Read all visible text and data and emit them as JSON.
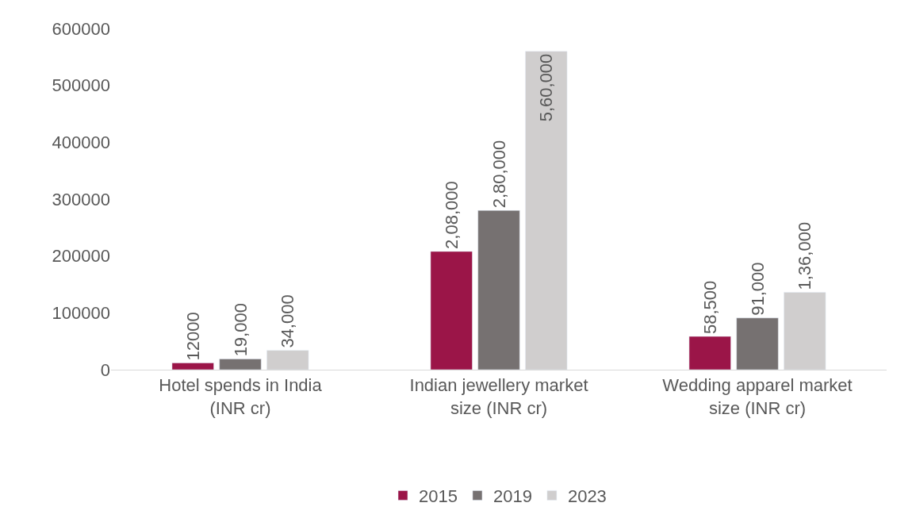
{
  "chart_data": {
    "type": "bar",
    "categories": [
      "Hotel spends in India (INR cr)",
      "Indian jewellery market size (INR cr)",
      "Wedding apparel market size (INR cr)"
    ],
    "series": [
      {
        "name": "2015",
        "color": "#9b1548",
        "values": [
          12000,
          208000,
          58500
        ],
        "value_labels": [
          "12000",
          "2,08,000",
          "58,500"
        ]
      },
      {
        "name": "2019",
        "color": "#767171",
        "values": [
          19000,
          280000,
          91000
        ],
        "value_labels": [
          "19,000",
          "2,80,000",
          "91,000"
        ]
      },
      {
        "name": "2023",
        "color": "#d0cece",
        "values": [
          34000,
          560000,
          136000
        ],
        "value_labels": [
          "34,000",
          "5,60,000",
          "1,36,000"
        ]
      }
    ],
    "ylim": [
      0,
      600000
    ],
    "yticks": [
      0,
      100000,
      200000,
      300000,
      400000,
      500000,
      600000
    ],
    "legend": "bottom"
  }
}
